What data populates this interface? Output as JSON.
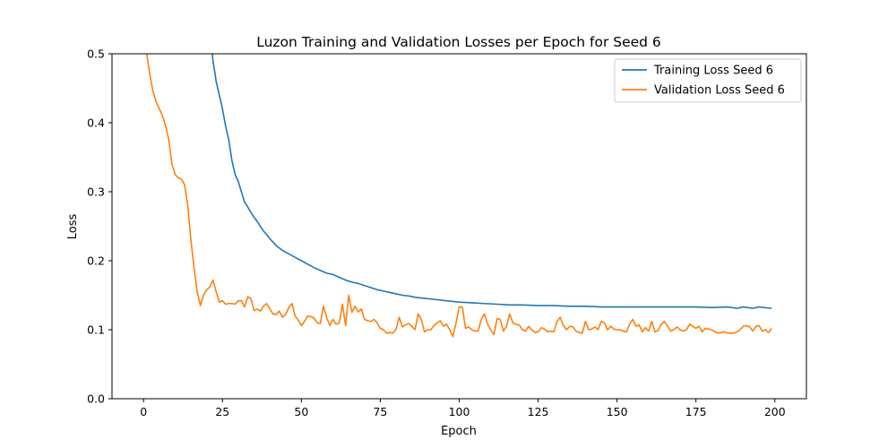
{
  "chart_data": {
    "type": "line",
    "title": "Luzon Training and Validation Losses per Epoch for Seed 6",
    "xlabel": "Epoch",
    "ylabel": "Loss",
    "xlim": [
      -10,
      210
    ],
    "ylim": [
      0.0,
      0.5
    ],
    "xticks": [
      0,
      25,
      50,
      75,
      100,
      125,
      150,
      175,
      200
    ],
    "yticks": [
      0.0,
      0.1,
      0.2,
      0.3,
      0.4,
      0.5
    ],
    "xtick_labels": [
      "0",
      "25",
      "50",
      "75",
      "100",
      "125",
      "150",
      "175",
      "200"
    ],
    "ytick_labels": [
      "0.0",
      "0.1",
      "0.2",
      "0.3",
      "0.4",
      "0.5"
    ],
    "grid": false,
    "legend_position": "top-right",
    "series": [
      {
        "name": "Training Loss Seed 6",
        "color": "#1f77b4",
        "points": [
          [
            20,
            0.56
          ],
          [
            21,
            0.53
          ],
          [
            22,
            0.49
          ],
          [
            23,
            0.46
          ],
          [
            24,
            0.44
          ],
          [
            25,
            0.42
          ],
          [
            26,
            0.395
          ],
          [
            27,
            0.375
          ],
          [
            28,
            0.345
          ],
          [
            29,
            0.325
          ],
          [
            30,
            0.315
          ],
          [
            31,
            0.3
          ],
          [
            32,
            0.285
          ],
          [
            33,
            0.278
          ],
          [
            34,
            0.27
          ],
          [
            35,
            0.263
          ],
          [
            36,
            0.257
          ],
          [
            37,
            0.25
          ],
          [
            38,
            0.243
          ],
          [
            39,
            0.238
          ],
          [
            40,
            0.232
          ],
          [
            42,
            0.222
          ],
          [
            44,
            0.215
          ],
          [
            46,
            0.21
          ],
          [
            48,
            0.205
          ],
          [
            50,
            0.2
          ],
          [
            52,
            0.195
          ],
          [
            54,
            0.19
          ],
          [
            56,
            0.186
          ],
          [
            58,
            0.182
          ],
          [
            60,
            0.18
          ],
          [
            62,
            0.176
          ],
          [
            64,
            0.172
          ],
          [
            66,
            0.169
          ],
          [
            68,
            0.167
          ],
          [
            70,
            0.164
          ],
          [
            72,
            0.161
          ],
          [
            74,
            0.158
          ],
          [
            76,
            0.156
          ],
          [
            78,
            0.154
          ],
          [
            80,
            0.152
          ],
          [
            82,
            0.15
          ],
          [
            84,
            0.149
          ],
          [
            86,
            0.147
          ],
          [
            88,
            0.146
          ],
          [
            90,
            0.145
          ],
          [
            92,
            0.144
          ],
          [
            94,
            0.143
          ],
          [
            96,
            0.142
          ],
          [
            98,
            0.141
          ],
          [
            100,
            0.14
          ],
          [
            104,
            0.139
          ],
          [
            108,
            0.138
          ],
          [
            112,
            0.137
          ],
          [
            116,
            0.136
          ],
          [
            120,
            0.136
          ],
          [
            125,
            0.135
          ],
          [
            130,
            0.135
          ],
          [
            135,
            0.134
          ],
          [
            140,
            0.134
          ],
          [
            145,
            0.133
          ],
          [
            150,
            0.133
          ],
          [
            155,
            0.133
          ],
          [
            160,
            0.133
          ],
          [
            165,
            0.133
          ],
          [
            170,
            0.133
          ],
          [
            175,
            0.133
          ],
          [
            180,
            0.132
          ],
          [
            185,
            0.133
          ],
          [
            188,
            0.131
          ],
          [
            190,
            0.133
          ],
          [
            193,
            0.131
          ],
          [
            195,
            0.133
          ],
          [
            197,
            0.132
          ],
          [
            199,
            0.131
          ]
        ]
      },
      {
        "name": "Validation Loss Seed 6",
        "color": "#ff7f0e",
        "points": [
          [
            0,
            0.54
          ],
          [
            1,
            0.5
          ],
          [
            2,
            0.47
          ],
          [
            3,
            0.445
          ],
          [
            4,
            0.43
          ],
          [
            5,
            0.42
          ],
          [
            6,
            0.41
          ],
          [
            7,
            0.395
          ],
          [
            8,
            0.375
          ],
          [
            9,
            0.34
          ],
          [
            10,
            0.325
          ],
          [
            11,
            0.32
          ],
          [
            12,
            0.318
          ],
          [
            13,
            0.31
          ],
          [
            14,
            0.28
          ],
          [
            15,
            0.23
          ],
          [
            16,
            0.19
          ],
          [
            17,
            0.155
          ],
          [
            18,
            0.135
          ],
          [
            19,
            0.15
          ],
          [
            20,
            0.158
          ],
          [
            21,
            0.162
          ],
          [
            22,
            0.172
          ],
          [
            23,
            0.155
          ],
          [
            24,
            0.14
          ],
          [
            25,
            0.142
          ],
          [
            26,
            0.137
          ],
          [
            27,
            0.138
          ],
          [
            28,
            0.138
          ],
          [
            29,
            0.137
          ],
          [
            30,
            0.142
          ],
          [
            31,
            0.142
          ],
          [
            32,
            0.133
          ],
          [
            33,
            0.148
          ],
          [
            34,
            0.145
          ],
          [
            35,
            0.128
          ],
          [
            36,
            0.13
          ],
          [
            37,
            0.127
          ],
          [
            38,
            0.134
          ],
          [
            39,
            0.138
          ],
          [
            40,
            0.13
          ],
          [
            41,
            0.123
          ],
          [
            42,
            0.122
          ],
          [
            43,
            0.127
          ],
          [
            44,
            0.118
          ],
          [
            45,
            0.122
          ],
          [
            46,
            0.132
          ],
          [
            47,
            0.138
          ],
          [
            48,
            0.12
          ],
          [
            49,
            0.114
          ],
          [
            50,
            0.106
          ],
          [
            51,
            0.112
          ],
          [
            52,
            0.12
          ],
          [
            53,
            0.119
          ],
          [
            54,
            0.117
          ],
          [
            55,
            0.11
          ],
          [
            56,
            0.109
          ],
          [
            57,
            0.134
          ],
          [
            58,
            0.118
          ],
          [
            59,
            0.106
          ],
          [
            60,
            0.115
          ],
          [
            61,
            0.108
          ],
          [
            62,
            0.11
          ],
          [
            63,
            0.137
          ],
          [
            64,
            0.106
          ],
          [
            65,
            0.15
          ],
          [
            66,
            0.125
          ],
          [
            67,
            0.134
          ],
          [
            68,
            0.126
          ],
          [
            69,
            0.13
          ],
          [
            70,
            0.115
          ],
          [
            71,
            0.113
          ],
          [
            72,
            0.112
          ],
          [
            73,
            0.115
          ],
          [
            74,
            0.11
          ],
          [
            75,
            0.102
          ],
          [
            76,
            0.1
          ],
          [
            77,
            0.095
          ],
          [
            78,
            0.096
          ],
          [
            79,
            0.095
          ],
          [
            80,
            0.101
          ],
          [
            81,
            0.118
          ],
          [
            82,
            0.104
          ],
          [
            83,
            0.107
          ],
          [
            84,
            0.109
          ],
          [
            85,
            0.105
          ],
          [
            86,
            0.1
          ],
          [
            87,
            0.123
          ],
          [
            88,
            0.115
          ],
          [
            89,
            0.097
          ],
          [
            90,
            0.1
          ],
          [
            91,
            0.1
          ],
          [
            92,
            0.106
          ],
          [
            93,
            0.11
          ],
          [
            94,
            0.113
          ],
          [
            95,
            0.105
          ],
          [
            96,
            0.108
          ],
          [
            97,
            0.1
          ],
          [
            98,
            0.09
          ],
          [
            99,
            0.11
          ],
          [
            100,
            0.133
          ],
          [
            101,
            0.133
          ],
          [
            102,
            0.102
          ],
          [
            103,
            0.104
          ],
          [
            104,
            0.1
          ],
          [
            105,
            0.098
          ],
          [
            106,
            0.098
          ],
          [
            107,
            0.115
          ],
          [
            108,
            0.123
          ],
          [
            109,
            0.108
          ],
          [
            110,
            0.1
          ],
          [
            111,
            0.093
          ],
          [
            112,
            0.116
          ],
          [
            113,
            0.115
          ],
          [
            114,
            0.098
          ],
          [
            115,
            0.105
          ],
          [
            116,
            0.123
          ],
          [
            117,
            0.11
          ],
          [
            118,
            0.108
          ],
          [
            119,
            0.107
          ],
          [
            120,
            0.1
          ],
          [
            121,
            0.098
          ],
          [
            122,
            0.105
          ],
          [
            123,
            0.1
          ],
          [
            124,
            0.096
          ],
          [
            125,
            0.097
          ],
          [
            126,
            0.103
          ],
          [
            127,
            0.101
          ],
          [
            128,
            0.097
          ],
          [
            129,
            0.098
          ],
          [
            130,
            0.097
          ],
          [
            131,
            0.112
          ],
          [
            132,
            0.118
          ],
          [
            133,
            0.106
          ],
          [
            134,
            0.1
          ],
          [
            135,
            0.105
          ],
          [
            136,
            0.104
          ],
          [
            137,
            0.098
          ],
          [
            138,
            0.096
          ],
          [
            139,
            0.095
          ],
          [
            140,
            0.112
          ],
          [
            141,
            0.1
          ],
          [
            142,
            0.101
          ],
          [
            143,
            0.104
          ],
          [
            144,
            0.1
          ],
          [
            145,
            0.112
          ],
          [
            146,
            0.11
          ],
          [
            147,
            0.1
          ],
          [
            148,
            0.105
          ],
          [
            149,
            0.101
          ],
          [
            150,
            0.1
          ],
          [
            151,
            0.1
          ],
          [
            152,
            0.098
          ],
          [
            153,
            0.097
          ],
          [
            154,
            0.108
          ],
          [
            155,
            0.115
          ],
          [
            156,
            0.105
          ],
          [
            157,
            0.107
          ],
          [
            158,
            0.097
          ],
          [
            159,
            0.103
          ],
          [
            160,
            0.098
          ],
          [
            161,
            0.112
          ],
          [
            162,
            0.097
          ],
          [
            163,
            0.099
          ],
          [
            164,
            0.108
          ],
          [
            165,
            0.112
          ],
          [
            166,
            0.105
          ],
          [
            167,
            0.098
          ],
          [
            168,
            0.1
          ],
          [
            169,
            0.104
          ],
          [
            170,
            0.1
          ],
          [
            171,
            0.098
          ],
          [
            172,
            0.1
          ],
          [
            173,
            0.108
          ],
          [
            174,
            0.105
          ],
          [
            175,
            0.102
          ],
          [
            176,
            0.105
          ],
          [
            177,
            0.097
          ],
          [
            178,
            0.102
          ],
          [
            179,
            0.101
          ],
          [
            180,
            0.1
          ],
          [
            181,
            0.097
          ],
          [
            182,
            0.095
          ],
          [
            183,
            0.096
          ],
          [
            184,
            0.097
          ],
          [
            185,
            0.095
          ],
          [
            186,
            0.095
          ],
          [
            187,
            0.095
          ],
          [
            188,
            0.097
          ],
          [
            189,
            0.1
          ],
          [
            190,
            0.105
          ],
          [
            191,
            0.106
          ],
          [
            192,
            0.104
          ],
          [
            193,
            0.098
          ],
          [
            194,
            0.105
          ],
          [
            195,
            0.106
          ],
          [
            196,
            0.098
          ],
          [
            197,
            0.1
          ],
          [
            198,
            0.096
          ],
          [
            199,
            0.102
          ]
        ]
      }
    ]
  }
}
